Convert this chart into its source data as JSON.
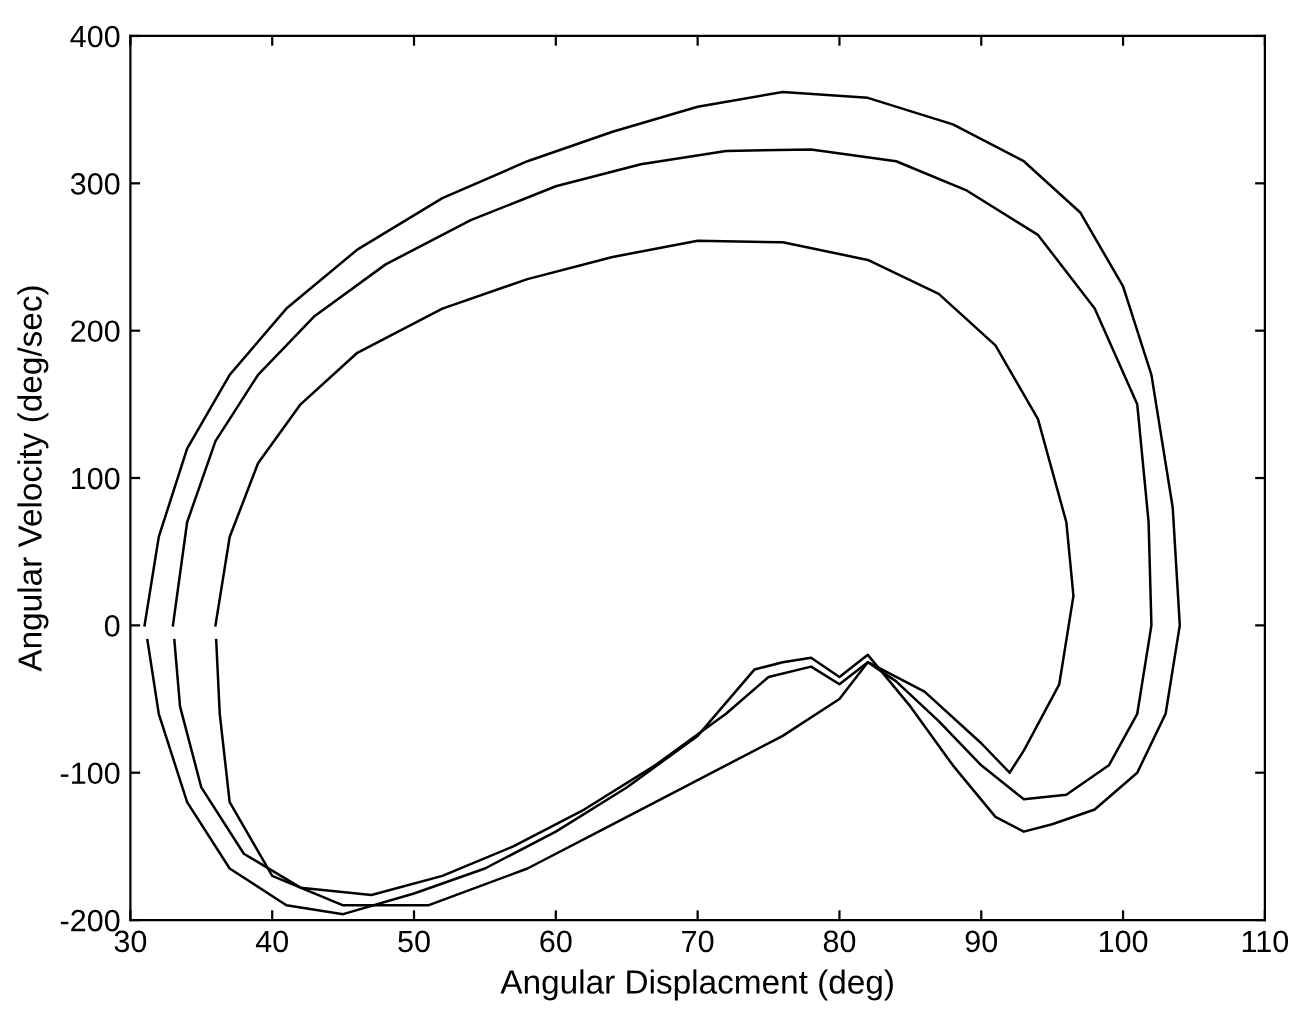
{
  "chart_data": {
    "type": "line",
    "xlabel": "Angular Displacment (deg)",
    "ylabel": "Angular Velocity (deg/sec)",
    "xlim": [
      30,
      110
    ],
    "ylim": [
      -200,
      400
    ],
    "xticks": [
      30,
      40,
      50,
      60,
      70,
      80,
      90,
      100,
      110
    ],
    "yticks": [
      -200,
      -100,
      0,
      100,
      200,
      300,
      400
    ],
    "grid": false,
    "marker": "none",
    "line_style": "solid",
    "series": [
      {
        "color": "#000000",
        "x": [
          31,
          32,
          34,
          37,
          41,
          46,
          52,
          58,
          64,
          70,
          76,
          82,
          88,
          93,
          97,
          100,
          102,
          103.5,
          104,
          103,
          101,
          98,
          95,
          93,
          91,
          88,
          85,
          82,
          80,
          78,
          76,
          74,
          70,
          65,
          60,
          55,
          50,
          45,
          41,
          37,
          34,
          32,
          31.2
        ],
        "values": [
          0,
          60,
          120,
          170,
          215,
          255,
          290,
          315,
          335,
          352,
          362,
          358,
          340,
          315,
          280,
          230,
          170,
          80,
          0,
          -60,
          -100,
          -125,
          -135,
          -140,
          -130,
          -95,
          -55,
          -20,
          -35,
          -22,
          -25,
          -30,
          -75,
          -110,
          -140,
          -165,
          -182,
          -196,
          -190,
          -165,
          -120,
          -60,
          -10
        ]
      },
      {
        "color": "#000000",
        "x": [
          33,
          34,
          36,
          39,
          43,
          48,
          54,
          60,
          66,
          72,
          78,
          84,
          89,
          94,
          98,
          101,
          101.8,
          102,
          101,
          99,
          96,
          93,
          90,
          87,
          84,
          82,
          80,
          78,
          75,
          72,
          67,
          62,
          57,
          52,
          47,
          42,
          38,
          35,
          33.5,
          33.1
        ],
        "values": [
          0,
          70,
          125,
          170,
          210,
          245,
          275,
          298,
          313,
          322,
          323,
          315,
          295,
          265,
          215,
          150,
          70,
          0,
          -60,
          -95,
          -115,
          -118,
          -95,
          -65,
          -38,
          -25,
          -40,
          -28,
          -35,
          -60,
          -95,
          -125,
          -150,
          -170,
          -183,
          -178,
          -155,
          -110,
          -55,
          -10
        ]
      },
      {
        "color": "#000000",
        "x": [
          36,
          37,
          39,
          42,
          46,
          52,
          58,
          64,
          70,
          76,
          82,
          87,
          91,
          94,
          96,
          96.5,
          95.5,
          93,
          92,
          90,
          86,
          82,
          80,
          76,
          70,
          64,
          58,
          51,
          45,
          40,
          37,
          36.3,
          36.05
        ],
        "values": [
          0,
          60,
          110,
          150,
          185,
          215,
          235,
          250,
          261,
          260,
          248,
          225,
          190,
          140,
          70,
          20,
          -40,
          -85,
          -100,
          -80,
          -45,
          -25,
          -50,
          -75,
          -105,
          -135,
          -165,
          -190,
          -190,
          -170,
          -120,
          -60,
          -10
        ]
      }
    ]
  }
}
